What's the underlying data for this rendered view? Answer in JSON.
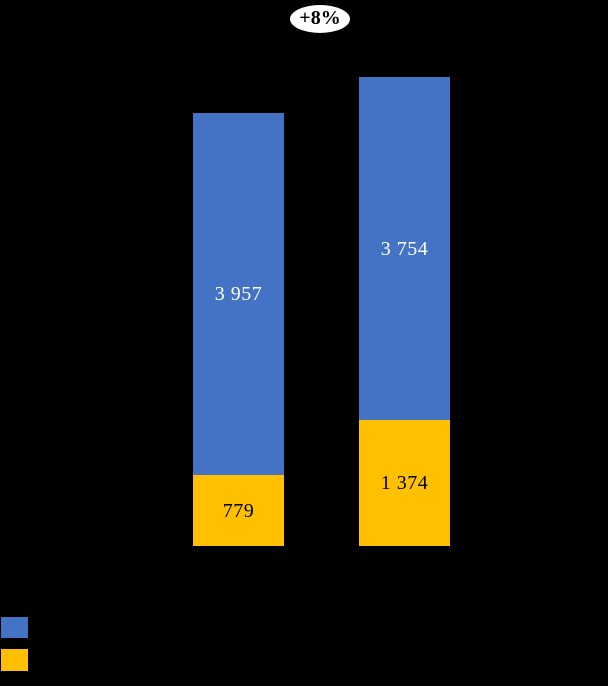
{
  "figure": {
    "background": "#000000"
  },
  "chart_data": {
    "type": "bar",
    "stacked": true,
    "orientation": "vertical",
    "title": "",
    "xlabel": "",
    "ylabel": "",
    "axes_visible": false,
    "grid": false,
    "legend_position": "bottom-left",
    "categories": [
      "",
      ""
    ],
    "series": [
      {
        "name": "blue-upper-segment",
        "color": "#4472C4",
        "values": [
          3957,
          3754
        ],
        "labels": [
          "3 957",
          "3 754"
        ],
        "label_color": "#FFFFFF"
      },
      {
        "name": "gold-lower-segment",
        "color": "#FFC000",
        "values": [
          779,
          1374
        ],
        "labels": [
          "779",
          "1 374"
        ],
        "label_color": "#000000"
      }
    ],
    "annotation": "+8%",
    "annotation_style": {
      "shape": "ellipse",
      "fill": "#FFFFFF",
      "text_color": "#000000"
    },
    "legend": [
      {
        "color": "#4472C4",
        "label": ""
      },
      {
        "color": "#FFC000",
        "label": ""
      }
    ]
  }
}
